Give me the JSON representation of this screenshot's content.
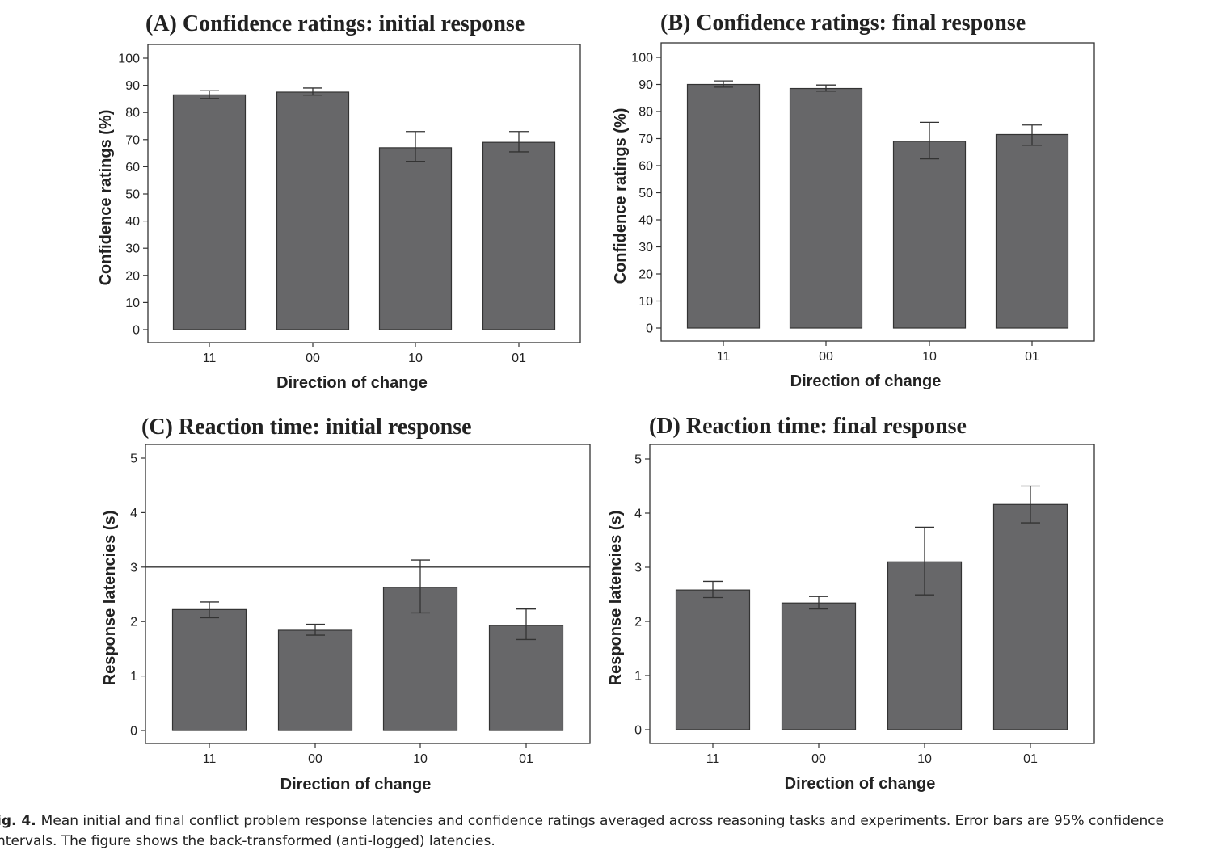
{
  "chart_data": [
    {
      "id": "A",
      "type": "bar",
      "title": "(A) Confidence ratings: initial response",
      "xlabel": "Direction of change",
      "ylabel": "Confidence ratings (%)",
      "categories": [
        "11",
        "00",
        "10",
        "01"
      ],
      "values": [
        86.5,
        87.5,
        67,
        69
      ],
      "error_low": [
        85.2,
        86.4,
        62,
        65.5
      ],
      "error_high": [
        88,
        89,
        73,
        73
      ],
      "ylim": [
        0,
        100
      ],
      "yticks": [
        0,
        10,
        20,
        30,
        40,
        50,
        60,
        70,
        80,
        90,
        100
      ],
      "reference_line": null
    },
    {
      "id": "B",
      "type": "bar",
      "title": "(B) Confidence ratings: final response",
      "xlabel": "Direction of change",
      "ylabel": "Confidence ratings (%)",
      "categories": [
        "11",
        "00",
        "10",
        "01"
      ],
      "values": [
        90,
        88.5,
        69,
        71.5
      ],
      "error_low": [
        89,
        87.5,
        62.5,
        67.5
      ],
      "error_high": [
        91.3,
        89.8,
        76,
        75
      ],
      "ylim": [
        0,
        100
      ],
      "yticks": [
        0,
        10,
        20,
        30,
        40,
        50,
        60,
        70,
        80,
        90,
        100
      ],
      "reference_line": null
    },
    {
      "id": "C",
      "type": "bar",
      "title": "(C) Reaction time: initial response",
      "xlabel": "Direction of change",
      "ylabel": "Response latencies (s)",
      "categories": [
        "11",
        "00",
        "10",
        "01"
      ],
      "values": [
        2.22,
        1.84,
        2.63,
        1.93
      ],
      "error_low": [
        2.07,
        1.75,
        2.16,
        1.67
      ],
      "error_high": [
        2.36,
        1.95,
        3.13,
        2.23
      ],
      "ylim": [
        0,
        5
      ],
      "yticks": [
        0,
        1,
        2,
        3,
        4,
        5
      ],
      "reference_line": 3
    },
    {
      "id": "D",
      "type": "bar",
      "title": "(D) Reaction time: final response",
      "xlabel": "Direction of change",
      "ylabel": "Response latencies (s)",
      "categories": [
        "11",
        "00",
        "10",
        "01"
      ],
      "values": [
        2.58,
        2.34,
        3.1,
        4.16
      ],
      "error_low": [
        2.44,
        2.23,
        2.49,
        3.82
      ],
      "error_high": [
        2.74,
        2.46,
        3.74,
        4.5
      ],
      "ylim": [
        0,
        5
      ],
      "yticks": [
        0,
        1,
        2,
        3,
        4,
        5
      ],
      "reference_line": null
    }
  ],
  "colors": {
    "bar": "#676769",
    "bar_stroke": "#333333",
    "axis": "#333333"
  },
  "caption": {
    "label": "ig. 4.",
    "line1": "Mean initial and final conflict problem response latencies and confidence ratings averaged across reasoning tasks and experiments. Error bars are 95% confidence",
    "line2": "ntervals. The figure shows the back-transformed (anti-logged) latencies."
  }
}
